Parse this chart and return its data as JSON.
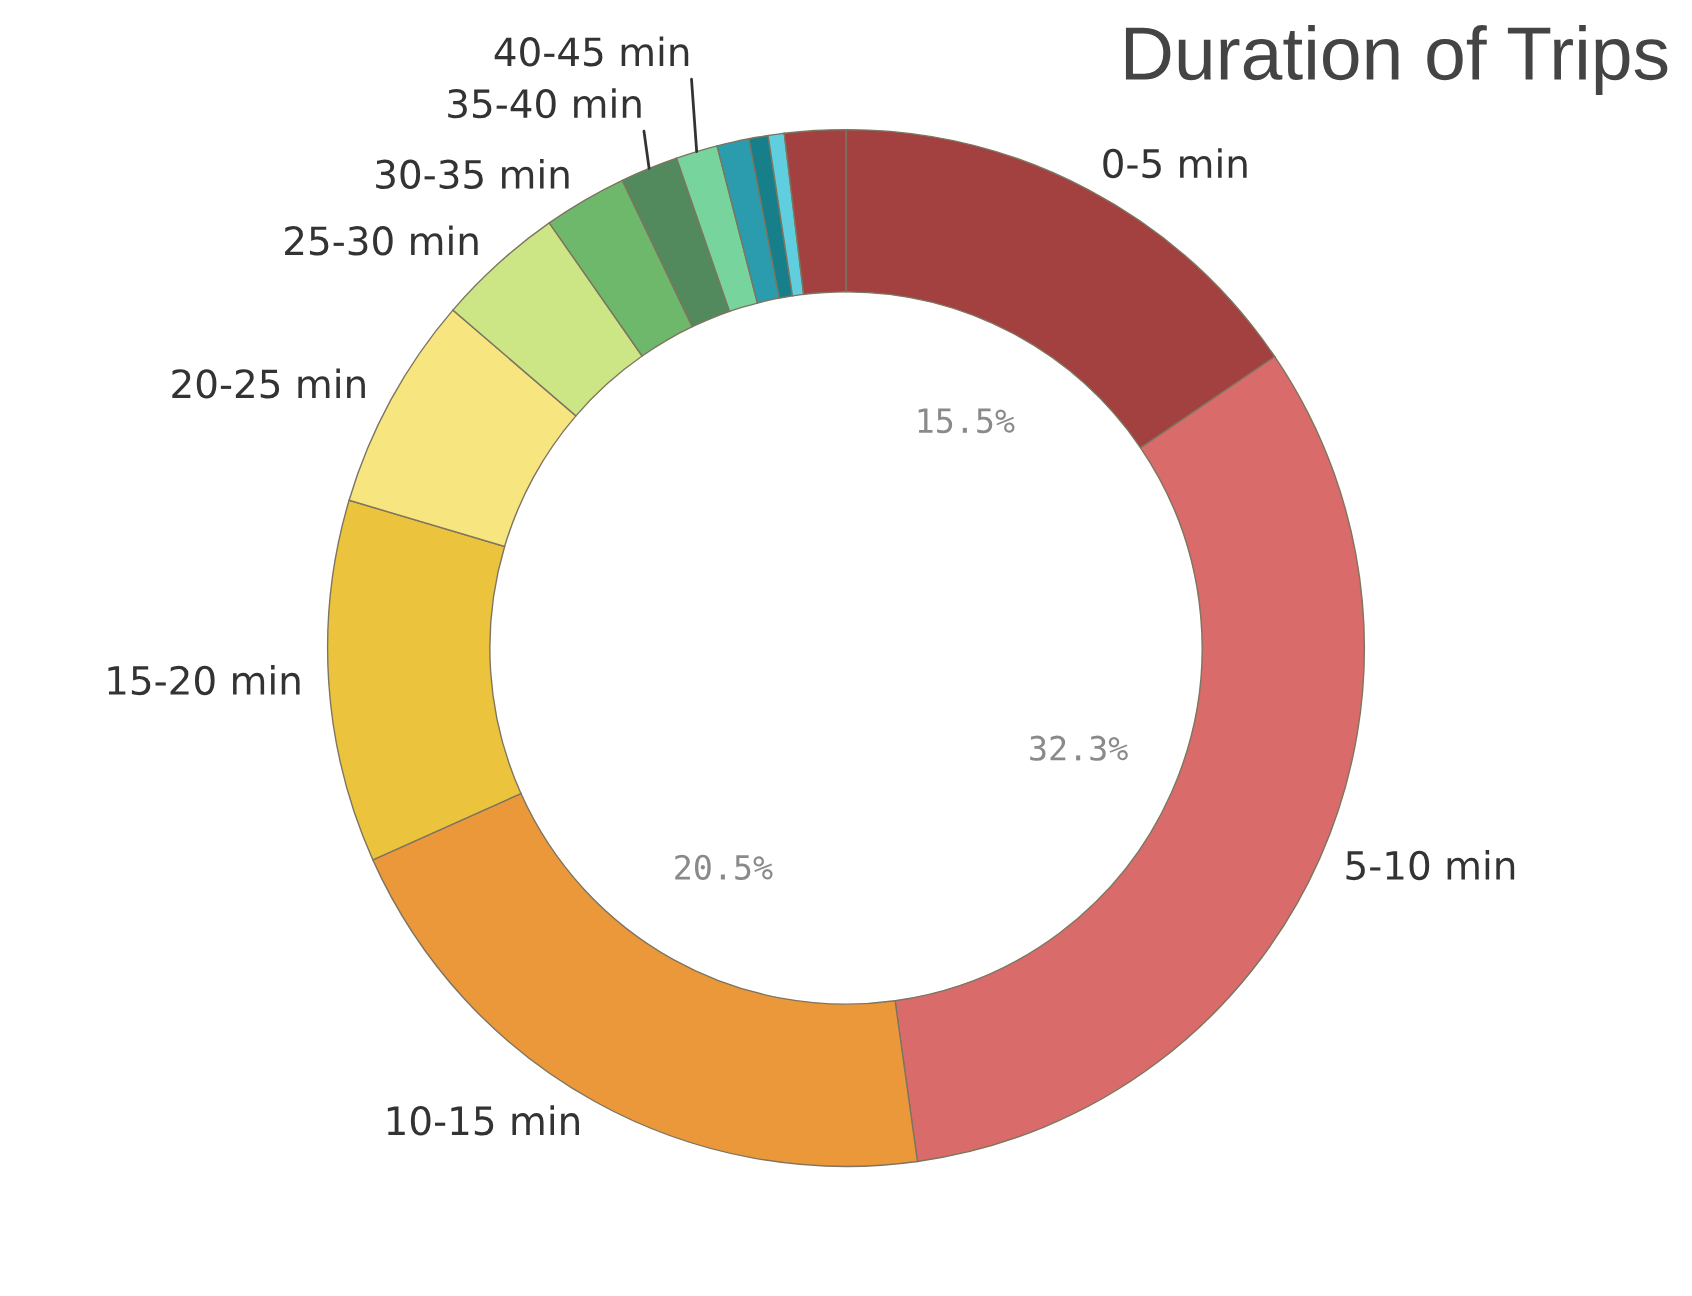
{
  "chart_data": {
    "type": "donut",
    "title": "Duration of Trips",
    "categories": [
      "0-5 min",
      "5-10 min",
      "10-15 min",
      "15-20 min",
      "20-25 min",
      "25-30 min",
      "30-35 min",
      "35-40 min",
      "40-45 min",
      null,
      null,
      null,
      null
    ],
    "values": [
      15.5,
      32.3,
      20.5,
      11.3,
      6.7,
      4.0,
      2.6,
      1.8,
      1.3,
      1.0,
      0.6,
      0.5,
      1.9
    ],
    "colors": [
      "#a34040",
      "#d96b6b",
      "#eb983b",
      "#ebc33d",
      "#f7e57f",
      "#cce585",
      "#6db86a",
      "#528a5d",
      "#76d49c",
      "#2a9cad",
      "#167f8a",
      "#5fcfe0",
      "#a34040"
    ],
    "value_labels": [
      "15.5%",
      "32.3%",
      "20.5%",
      null,
      null,
      null,
      null,
      null,
      null,
      null,
      null,
      null,
      null
    ]
  }
}
